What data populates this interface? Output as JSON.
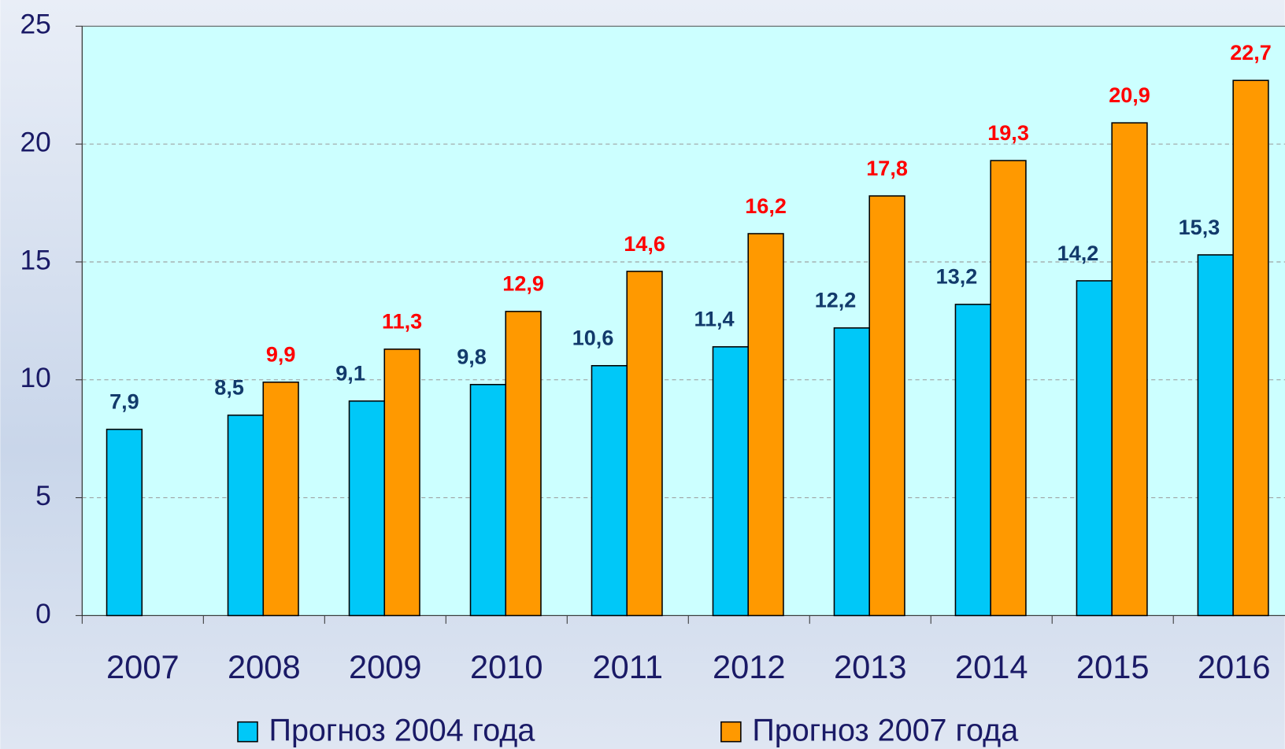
{
  "chart_data": {
    "type": "bar",
    "categories": [
      "2007",
      "2008",
      "2009",
      "2010",
      "2011",
      "2012",
      "2013",
      "2014",
      "2015",
      "2016"
    ],
    "series": [
      {
        "name": "Прогноз 2004 года",
        "color": "#00c8f8",
        "label_color": "#123a6b",
        "values": [
          7.9,
          8.5,
          9.1,
          9.8,
          10.6,
          11.4,
          12.2,
          13.2,
          14.2,
          15.3
        ],
        "value_labels": [
          "7,9",
          "8,5",
          "9,1",
          "9,8",
          "10,6",
          "11,4",
          "12,2",
          "13,2",
          "14,2",
          "15,3"
        ]
      },
      {
        "name": "Прогноз 2007 года",
        "color": "#ff9900",
        "label_color": "#ff0000",
        "values": [
          null,
          9.9,
          11.3,
          12.9,
          14.6,
          16.2,
          17.8,
          19.3,
          20.9,
          22.7
        ],
        "value_labels": [
          null,
          "9,9",
          "11,3",
          "12,9",
          "14,6",
          "16,2",
          "17,8",
          "19,3",
          "20,9",
          "22,7"
        ]
      }
    ],
    "ylim": [
      0,
      25
    ],
    "yticks": [
      0,
      5,
      10,
      15,
      20,
      25
    ],
    "grid": true
  }
}
